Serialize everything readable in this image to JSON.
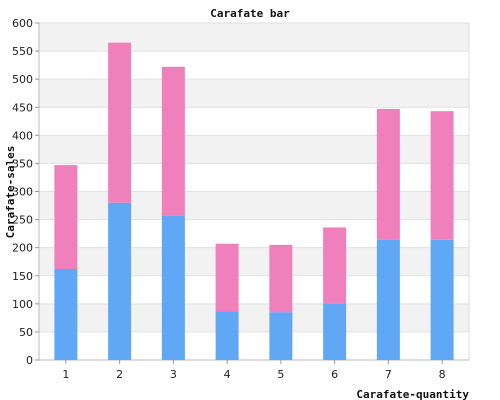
{
  "chart_data": {
    "type": "bar",
    "stacked": true,
    "title": "Carafate bar",
    "xlabel": "Carafate-quantity",
    "ylabel": "Carafate-sales",
    "categories": [
      "1",
      "2",
      "3",
      "4",
      "5",
      "6",
      "7",
      "8"
    ],
    "series": [
      {
        "values": [
          162,
          280,
          257,
          87,
          85,
          101,
          215,
          214
        ],
        "color": "#60a8f6"
      },
      {
        "values": [
          185,
          285,
          265,
          120,
          120,
          135,
          232,
          229
        ],
        "color": "#f080bc"
      }
    ],
    "ylim": [
      0,
      600
    ],
    "yticks": [
      0,
      50,
      100,
      150,
      200,
      250,
      300,
      350,
      400,
      450,
      500,
      550,
      600
    ],
    "grid": true,
    "band_colors": [
      "#ffffff",
      "#f2f2f2"
    ]
  }
}
